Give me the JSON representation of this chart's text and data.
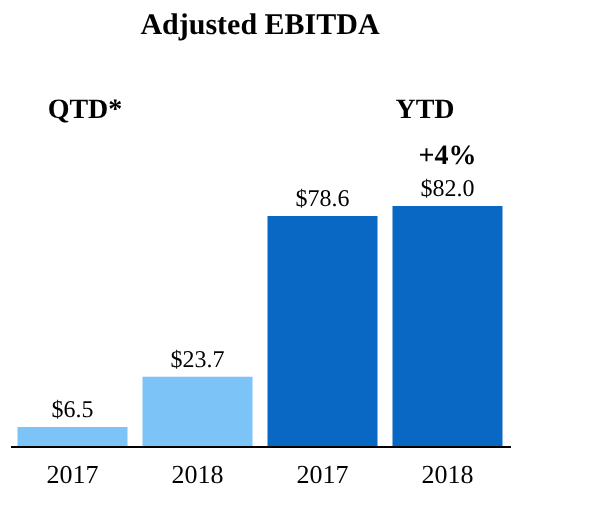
{
  "chart_data": {
    "type": "bar",
    "title": "Adjusted EBITDA",
    "categories": [
      "2017",
      "2018",
      "2017",
      "2018"
    ],
    "values": [
      6.5,
      23.7,
      78.6,
      82.0
    ],
    "colors": [
      "#7cc3f7",
      "#7cc3f7",
      "#0868c4",
      "#0868c4"
    ],
    "value_labels": [
      "$6.5",
      "$23.7",
      "$78.6",
      "$82.0"
    ],
    "annotations": [
      "QTD*",
      "YTD",
      "+4%"
    ]
  }
}
